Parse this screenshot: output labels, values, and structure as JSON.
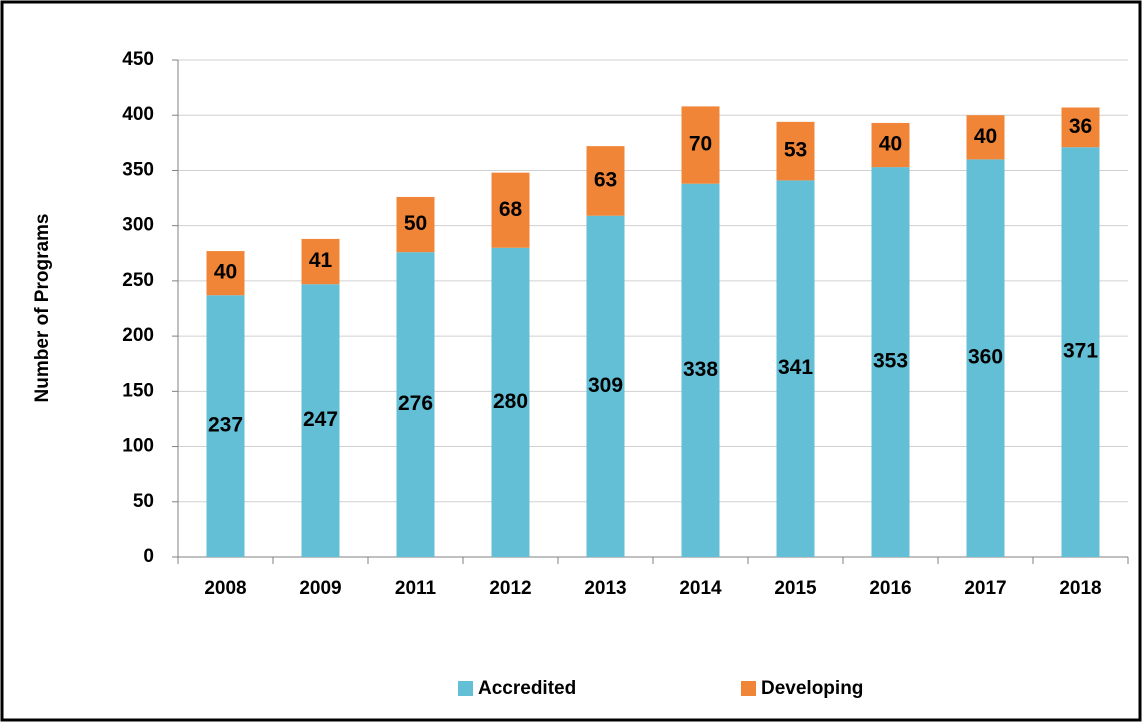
{
  "chart_data": {
    "type": "stacked-bar",
    "y_label": "Number of Programs",
    "categories": [
      "2008",
      "2009",
      "2011",
      "2012",
      "2013",
      "2014",
      "2015",
      "2016",
      "2017",
      "2018"
    ],
    "series": [
      {
        "name": "Accredited",
        "color": "#62bfd6",
        "values": [
          237,
          247,
          276,
          280,
          309,
          338,
          341,
          353,
          360,
          371
        ]
      },
      {
        "name": "Developing",
        "color": "#f08537",
        "values": [
          40,
          41,
          50,
          68,
          63,
          70,
          53,
          40,
          40,
          36
        ]
      }
    ],
    "ylim": [
      0,
      450
    ],
    "yticks": [
      0,
      50,
      100,
      150,
      200,
      250,
      300,
      350,
      400,
      450
    ],
    "grid": true,
    "legend": "bottom"
  }
}
